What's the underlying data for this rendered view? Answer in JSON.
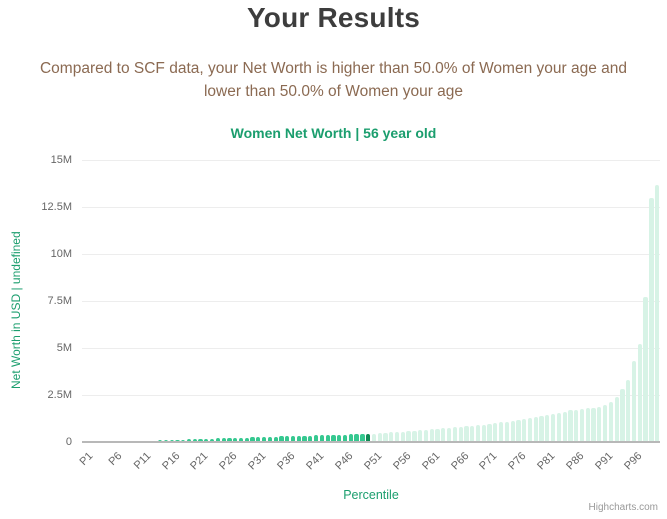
{
  "page": {
    "title": "Your Results",
    "subtitle_line1": "Compared to SCF data, your Net Worth is higher than 50.0% of Women your age and",
    "subtitle_line2": "lower than 50.0% of Women your age",
    "credits": "Highcharts.com"
  },
  "colors": {
    "title_dark": "#3d3d3d",
    "subtitle_brown": "#8b6a52",
    "text_green": "#1b9e6e",
    "tick_gray": "#666666",
    "grid": "#ededed",
    "axis_line": "#b8b8b8",
    "credits_gray": "#999999",
    "bar_below_user": "#36c890",
    "bar_user": "#0f8a55",
    "bar_above_user": "#d7f3e6"
  },
  "chart_data": {
    "type": "bar",
    "title": "Women Net Worth | 56 year old",
    "xlabel": "Percentile",
    "ylabel": "Net Worth in USD | undefined",
    "ylim": [
      0,
      15000000
    ],
    "grid": "on",
    "legend": "off",
    "y_ticks": [
      {
        "value": 0,
        "label": "0"
      },
      {
        "value": 2500000,
        "label": "2.5M"
      },
      {
        "value": 5000000,
        "label": "5M"
      },
      {
        "value": 7500000,
        "label": "7.5M"
      },
      {
        "value": 10000000,
        "label": "10M"
      },
      {
        "value": 12500000,
        "label": "12.5M"
      },
      {
        "value": 15000000,
        "label": "15M"
      }
    ],
    "x_tick_labels": [
      "P1",
      "P6",
      "P11",
      "P16",
      "P21",
      "P26",
      "P31",
      "P36",
      "P41",
      "P46",
      "P51",
      "P56",
      "P61",
      "P66",
      "P71",
      "P76",
      "P81",
      "P86",
      "P91",
      "P96"
    ],
    "x_tick_step": 5,
    "highlight_index": 49,
    "highlight_category": "P50",
    "categories": [
      "P1",
      "P2",
      "P3",
      "P4",
      "P5",
      "P6",
      "P7",
      "P8",
      "P9",
      "P10",
      "P11",
      "P12",
      "P13",
      "P14",
      "P15",
      "P16",
      "P17",
      "P18",
      "P19",
      "P20",
      "P21",
      "P22",
      "P23",
      "P24",
      "P25",
      "P26",
      "P27",
      "P28",
      "P29",
      "P30",
      "P31",
      "P32",
      "P33",
      "P34",
      "P35",
      "P36",
      "P37",
      "P38",
      "P39",
      "P40",
      "P41",
      "P42",
      "P43",
      "P44",
      "P45",
      "P46",
      "P47",
      "P48",
      "P49",
      "P50",
      "P51",
      "P52",
      "P53",
      "P54",
      "P55",
      "P56",
      "P57",
      "P58",
      "P59",
      "P60",
      "P61",
      "P62",
      "P63",
      "P64",
      "P65",
      "P66",
      "P67",
      "P68",
      "P69",
      "P70",
      "P71",
      "P72",
      "P73",
      "P74",
      "P75",
      "P76",
      "P77",
      "P78",
      "P79",
      "P80",
      "P81",
      "P82",
      "P83",
      "P84",
      "P85",
      "P86",
      "P87",
      "P88",
      "P89",
      "P90",
      "P91",
      "P92",
      "P93",
      "P94",
      "P95",
      "P96",
      "P97",
      "P98",
      "P99",
      "P100"
    ],
    "values": [
      0,
      0,
      10000,
      20000,
      30000,
      40000,
      45000,
      50000,
      55000,
      60000,
      70000,
      75000,
      80000,
      90000,
      100000,
      110000,
      120000,
      130000,
      140000,
      150000,
      160000,
      170000,
      180000,
      190000,
      200000,
      210000,
      220000,
      230000,
      240000,
      250000,
      260000,
      270000,
      280000,
      290000,
      300000,
      310000,
      315000,
      325000,
      335000,
      345000,
      350000,
      360000,
      365000,
      375000,
      385000,
      390000,
      400000,
      405000,
      415000,
      420000,
      450000,
      470000,
      490000,
      510000,
      530000,
      550000,
      570000,
      590000,
      620000,
      650000,
      670000,
      690000,
      720000,
      750000,
      780000,
      800000,
      830000,
      860000,
      900000,
      930000,
      960000,
      1000000,
      1040000,
      1080000,
      1120000,
      1170000,
      1220000,
      1270000,
      1320000,
      1380000,
      1440000,
      1500000,
      1560000,
      1620000,
      1680000,
      1720000,
      1760000,
      1800000,
      1820000,
      1850000,
      1950000,
      2150000,
      2400000,
      2800000,
      3300000,
      4300000,
      5200000,
      7700000,
      13000000,
      13650000
    ]
  }
}
